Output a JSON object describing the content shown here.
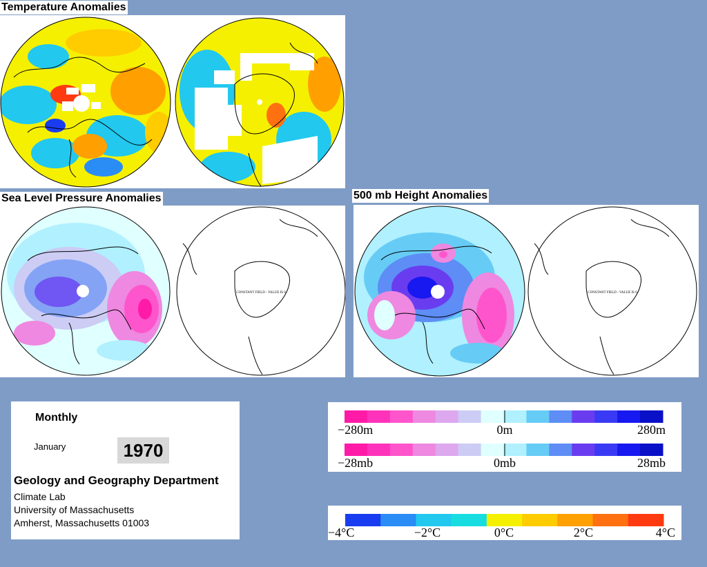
{
  "headings": {
    "temperature": "Temperature Anomalies",
    "slp": "Sea Level Pressure Anomalies",
    "height500": "500 mb Height Anomalies"
  },
  "maps": {
    "constant_field_label": "CONSTANT FIELD - VALUE IS 0"
  },
  "info": {
    "period": "Monthly",
    "month": "January",
    "year": "1970",
    "department": "Geology and Geography Department",
    "address": [
      "Climate Lab",
      "University of Massachusetts",
      "Amherst, Massachusetts 01003"
    ]
  },
  "scales": {
    "height": {
      "labels": [
        "−280m",
        "0m",
        "280m"
      ]
    },
    "pressure": {
      "labels": [
        "−28mb",
        "0mb",
        "28mb"
      ]
    },
    "temperature": {
      "labels": [
        "−4°C",
        "−2°C",
        "0°C",
        "2°C",
        "4°C"
      ]
    }
  },
  "colors": {
    "background": "#7f9cc6",
    "anomaly_scale": [
      "#ff1aa8",
      "#ff33bb",
      "#ff55cc",
      "#ee88e0",
      "#dda8ee",
      "#ccccf5",
      "#e0ffff",
      "#b0f0ff",
      "#66ccf5",
      "#5d8df5",
      "#6a3cf0",
      "#3a3af5",
      "#1818f0",
      "#0a10c8"
    ],
    "temperature_scale": [
      "#1a3cf0",
      "#2a8cf5",
      "#22c8ee",
      "#18dde0",
      "#f5f000",
      "#ffcc00",
      "#ffa000",
      "#ff7010",
      "#ff3a10"
    ]
  }
}
